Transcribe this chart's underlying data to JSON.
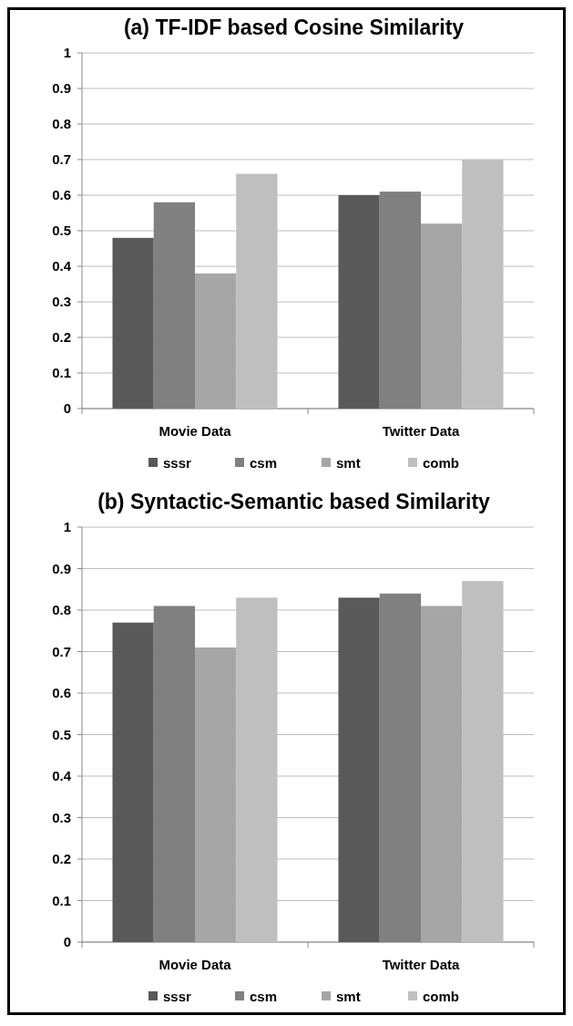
{
  "chart_data": [
    {
      "type": "bar",
      "title": "(a) TF-IDF based Cosine Similarity",
      "categories": [
        "Movie Data",
        "Twitter Data"
      ],
      "series": [
        {
          "name": "sssr",
          "color": "#595959",
          "values": [
            0.48,
            0.6
          ]
        },
        {
          "name": "csm",
          "color": "#808080",
          "values": [
            0.58,
            0.61
          ]
        },
        {
          "name": "smt",
          "color": "#a6a6a6",
          "values": [
            0.38,
            0.52
          ]
        },
        {
          "name": "comb",
          "color": "#bfbfbf",
          "values": [
            0.66,
            0.7
          ]
        }
      ],
      "ylim": [
        0,
        1
      ],
      "yticks": [
        0,
        0.1,
        0.2,
        0.3,
        0.4,
        0.5,
        0.6,
        0.7,
        0.8,
        0.9,
        1
      ],
      "grid": "y",
      "legend": "bottom"
    },
    {
      "type": "bar",
      "title": "(b) Syntactic-Semantic based Similarity",
      "categories": [
        "Movie Data",
        "Twitter Data"
      ],
      "series": [
        {
          "name": "sssr",
          "color": "#595959",
          "values": [
            0.77,
            0.83
          ]
        },
        {
          "name": "csm",
          "color": "#808080",
          "values": [
            0.81,
            0.84
          ]
        },
        {
          "name": "smt",
          "color": "#a6a6a6",
          "values": [
            0.71,
            0.81
          ]
        },
        {
          "name": "comb",
          "color": "#bfbfbf",
          "values": [
            0.83,
            0.87
          ]
        }
      ],
      "ylim": [
        0,
        1
      ],
      "yticks": [
        0,
        0.1,
        0.2,
        0.3,
        0.4,
        0.5,
        0.6,
        0.7,
        0.8,
        0.9,
        1
      ],
      "grid": "y",
      "legend": "bottom"
    }
  ]
}
